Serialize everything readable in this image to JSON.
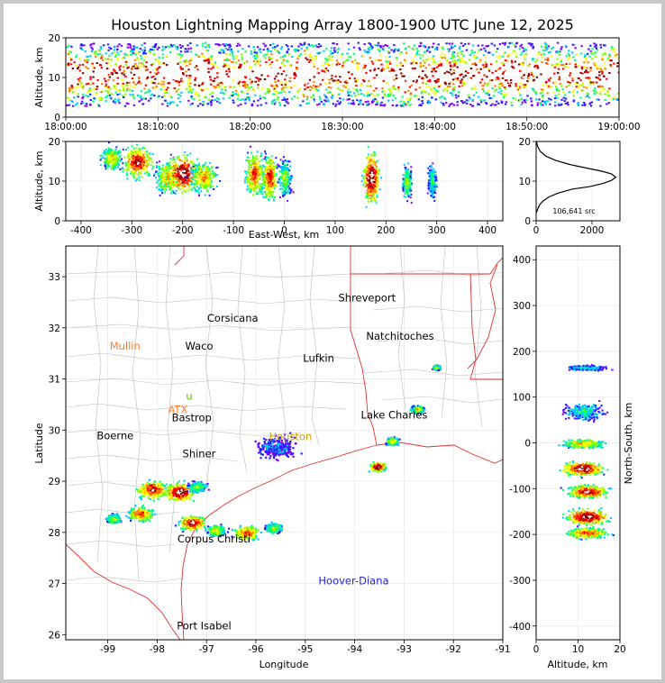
{
  "title": "Houston Lightning Mapping Array 1800-1900 UTC June 12, 2025",
  "colors": {
    "ramp": [
      "#7a00ff",
      "#2020ff",
      "#00c8ff",
      "#00ff80",
      "#80ff00",
      "#ffff00",
      "#ff8000",
      "#ff0000",
      "#800000",
      "#ffffff"
    ],
    "border_state": "#e03030",
    "county": "#bbbbbb",
    "city_orange": "#ff7a30",
    "city_blue": "#2020e0",
    "city_gold": "#d4a000",
    "city_green": "#60c000"
  },
  "chart_data": [
    {
      "name": "time-altitude",
      "type": "heatmap",
      "ylabel": "Altitude, km",
      "xlim": [
        "18:00:00",
        "19:00:00"
      ],
      "ylim": [
        0,
        20
      ],
      "xticks": [
        "18:00:00",
        "18:10:00",
        "18:20:00",
        "18:30:00",
        "18:40:00",
        "18:50:00",
        "19:00:00"
      ],
      "yticks": [
        "0",
        "10",
        "20"
      ],
      "band_km": [
        3,
        19
      ],
      "core_km": [
        8,
        14
      ]
    },
    {
      "name": "eastwest-altitude",
      "type": "heatmap",
      "xlabel": "East-West, km",
      "ylabel": "Altitude, km",
      "xlim": [
        -430,
        430
      ],
      "ylim": [
        0,
        20
      ],
      "xticks": [
        "-400",
        "-300",
        "-200",
        "-100",
        "0",
        "100",
        "200",
        "300",
        "400"
      ],
      "yticks": [
        "0",
        "10",
        "20"
      ],
      "clusters": [
        {
          "x": -340,
          "z": 16,
          "w": 20,
          "h": 4,
          "peak": 0.6
        },
        {
          "x": -290,
          "z": 15,
          "w": 28,
          "h": 5,
          "peak": 0.9
        },
        {
          "x": -230,
          "z": 11,
          "w": 22,
          "h": 5,
          "peak": 0.7
        },
        {
          "x": -200,
          "z": 12,
          "w": 30,
          "h": 6,
          "peak": 1.0
        },
        {
          "x": -160,
          "z": 11,
          "w": 25,
          "h": 5,
          "peak": 0.7
        },
        {
          "x": -60,
          "z": 12,
          "w": 18,
          "h": 7,
          "peak": 0.8
        },
        {
          "x": -30,
          "z": 11,
          "w": 14,
          "h": 7,
          "peak": 0.85
        },
        {
          "x": 0,
          "z": 11,
          "w": 12,
          "h": 6,
          "peak": 0.5
        },
        {
          "x": 170,
          "z": 11,
          "w": 15,
          "h": 8,
          "peak": 1.0
        },
        {
          "x": 240,
          "z": 10,
          "w": 8,
          "h": 5,
          "peak": 0.55
        },
        {
          "x": 290,
          "z": 10,
          "w": 8,
          "h": 5,
          "peak": 0.4
        }
      ]
    },
    {
      "name": "altitude-histogram",
      "type": "line",
      "xlim": [
        0,
        3000
      ],
      "ylim": [
        0,
        20
      ],
      "xticks": [
        "0",
        "2000"
      ],
      "yticks": [
        "0",
        "10",
        "20"
      ],
      "annotation": "106,641 src",
      "x": [
        0,
        60,
        120,
        250,
        450,
        800,
        1300,
        1900,
        2400,
        2700,
        2850,
        2700,
        2350,
        1800,
        1200,
        700,
        350,
        150,
        50,
        10
      ],
      "y": [
        2,
        3,
        4,
        5,
        6,
        7,
        8,
        8.6,
        9.4,
        10.2,
        11,
        11.8,
        12.5,
        13.3,
        14.2,
        15.2,
        16.3,
        17.5,
        18.8,
        20
      ]
    },
    {
      "name": "plan-view",
      "type": "scatter",
      "xlabel": "Longitude",
      "ylabel": "Latitude",
      "xlim": [
        -99.85,
        -91
      ],
      "ylim": [
        25.9,
        33.6
      ],
      "xticks": [
        "-99",
        "-98",
        "-97",
        "-96",
        "-95",
        "-94",
        "-93",
        "-92",
        "-91"
      ],
      "yticks": [
        "26",
        "27",
        "28",
        "29",
        "30",
        "31",
        "32",
        "33"
      ],
      "cities": [
        {
          "label": "Shreveport",
          "lon": -93.75,
          "lat": 32.52,
          "color": "#000000"
        },
        {
          "label": "Corsicana",
          "lon": -96.47,
          "lat": 32.12,
          "color": "#000000"
        },
        {
          "label": "Mullin",
          "lon": -98.65,
          "lat": 31.57,
          "color": "#ff7a30"
        },
        {
          "label": "Waco",
          "lon": -97.15,
          "lat": 31.57,
          "color": "#000000"
        },
        {
          "label": "Natchitoches",
          "lon": -93.08,
          "lat": 31.77,
          "color": "#000000"
        },
        {
          "label": "Lufkin",
          "lon": -94.73,
          "lat": 31.34,
          "color": "#000000"
        },
        {
          "label": "Lake Charles",
          "lon": -93.2,
          "lat": 30.23,
          "color": "#000000"
        },
        {
          "label": "Bastrop",
          "lon": -97.3,
          "lat": 30.17,
          "color": "#000000"
        },
        {
          "label": "Boerne",
          "lon": -98.85,
          "lat": 29.82,
          "color": "#000000"
        },
        {
          "label": "Houston",
          "lon": -95.3,
          "lat": 29.8,
          "color": "#d4a000"
        },
        {
          "label": "Shiner",
          "lon": -97.15,
          "lat": 29.47,
          "color": "#000000"
        },
        {
          "label": "Corpus Christi",
          "lon": -96.85,
          "lat": 27.8,
          "color": "#000000"
        },
        {
          "label": "Hoover-Diana",
          "lon": -94.02,
          "lat": 26.98,
          "color": "#2020e0"
        },
        {
          "label": "Port Isabel",
          "lon": -97.05,
          "lat": 26.1,
          "color": "#000000"
        },
        {
          "label": "ATX",
          "lon": -97.58,
          "lat": 30.33,
          "color": "#ff7a30"
        },
        {
          "label": "u",
          "lon": -97.35,
          "lat": 30.6,
          "color": "#60c000"
        }
      ],
      "storms": [
        {
          "lon": -98.1,
          "lat": 28.85,
          "r": 0.35,
          "peak": 0.9
        },
        {
          "lon": -97.55,
          "lat": 28.8,
          "r": 0.35,
          "peak": 1.0
        },
        {
          "lon": -97.2,
          "lat": 28.9,
          "r": 0.22,
          "peak": 0.5
        },
        {
          "lon": -98.35,
          "lat": 28.38,
          "r": 0.28,
          "peak": 0.8
        },
        {
          "lon": -98.9,
          "lat": 28.28,
          "r": 0.18,
          "peak": 0.55
        },
        {
          "lon": -97.3,
          "lat": 28.2,
          "r": 0.3,
          "peak": 0.95
        },
        {
          "lon": -96.82,
          "lat": 28.05,
          "r": 0.22,
          "peak": 0.6
        },
        {
          "lon": -96.2,
          "lat": 28.0,
          "r": 0.3,
          "peak": 0.8
        },
        {
          "lon": -95.65,
          "lat": 28.1,
          "r": 0.2,
          "peak": 0.5
        },
        {
          "lon": -95.6,
          "lat": 29.68,
          "r": 0.45,
          "peak": 0.2
        },
        {
          "lon": -93.55,
          "lat": 29.3,
          "r": 0.18,
          "peak": 1.0
        },
        {
          "lon": -93.25,
          "lat": 29.8,
          "r": 0.15,
          "peak": 0.6
        },
        {
          "lon": -92.75,
          "lat": 30.42,
          "r": 0.15,
          "peak": 0.6
        },
        {
          "lon": -92.35,
          "lat": 31.24,
          "r": 0.1,
          "peak": 0.5
        }
      ]
    },
    {
      "name": "altitude-northsouth",
      "type": "heatmap",
      "xlabel": "Altitude, km",
      "ylabel": "North-South, km",
      "xlim": [
        0,
        20
      ],
      "ylim": [
        -430,
        430
      ],
      "xticks": [
        "0",
        "10",
        "20"
      ],
      "yticks": [
        "-400",
        "-300",
        "-200",
        "-100",
        "0",
        "100",
        "200",
        "300",
        "400"
      ],
      "clusters": [
        {
          "y": 165,
          "z": 12,
          "w": 6,
          "h": 6,
          "peak": 0.3
        },
        {
          "y": 70,
          "z": 11,
          "w": 6,
          "h": 20,
          "peak": 0.35
        },
        {
          "y": 0,
          "z": 11,
          "w": 6,
          "h": 10,
          "peak": 0.7
        },
        {
          "y": -55,
          "z": 11,
          "w": 6,
          "h": 15,
          "peak": 1.0
        },
        {
          "y": -105,
          "z": 12,
          "w": 6,
          "h": 15,
          "peak": 0.9
        },
        {
          "y": -160,
          "z": 12,
          "w": 6,
          "h": 18,
          "peak": 1.0
        },
        {
          "y": -195,
          "z": 12,
          "w": 6,
          "h": 12,
          "peak": 0.8
        }
      ]
    }
  ]
}
